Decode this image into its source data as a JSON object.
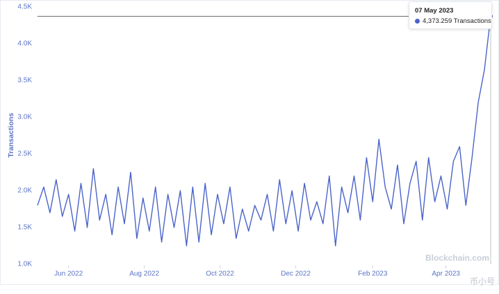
{
  "chart_data": {
    "type": "line",
    "y_label": "Transactions",
    "watermark": "Blockchain.com",
    "watermark2": "币小号",
    "tooltip": {
      "title": "07 May 2023",
      "text": "4,373.259 Transactions"
    },
    "x": [
      "2022-05-07",
      "2022-05-12",
      "2022-05-17",
      "2022-05-22",
      "2022-05-27",
      "2022-06-01",
      "2022-06-06",
      "2022-06-11",
      "2022-06-16",
      "2022-06-21",
      "2022-06-26",
      "2022-07-01",
      "2022-07-06",
      "2022-07-11",
      "2022-07-16",
      "2022-07-21",
      "2022-07-26",
      "2022-07-31",
      "2022-08-05",
      "2022-08-10",
      "2022-08-15",
      "2022-08-20",
      "2022-08-25",
      "2022-08-30",
      "2022-09-04",
      "2022-09-09",
      "2022-09-14",
      "2022-09-19",
      "2022-09-24",
      "2022-09-29",
      "2022-10-04",
      "2022-10-09",
      "2022-10-14",
      "2022-10-19",
      "2022-10-24",
      "2022-10-29",
      "2022-11-03",
      "2022-11-08",
      "2022-11-13",
      "2022-11-18",
      "2022-11-23",
      "2022-11-28",
      "2022-12-03",
      "2022-12-08",
      "2022-12-13",
      "2022-12-18",
      "2022-12-23",
      "2022-12-28",
      "2023-01-02",
      "2023-01-07",
      "2023-01-12",
      "2023-01-17",
      "2023-01-22",
      "2023-01-27",
      "2023-02-01",
      "2023-02-06",
      "2023-02-11",
      "2023-02-16",
      "2023-02-21",
      "2023-02-26",
      "2023-03-03",
      "2023-03-08",
      "2023-03-13",
      "2023-03-18",
      "2023-03-23",
      "2023-03-28",
      "2023-04-02",
      "2023-04-07",
      "2023-04-12",
      "2023-04-17",
      "2023-04-22",
      "2023-04-27",
      "2023-05-02",
      "2023-05-07"
    ],
    "series": [
      {
        "name": "Transactions",
        "color": "#4a63c8",
        "values": [
          1800,
          2050,
          1700,
          2150,
          1650,
          1950,
          1450,
          2100,
          1500,
          2300,
          1600,
          1950,
          1400,
          2050,
          1550,
          2250,
          1350,
          1900,
          1450,
          2050,
          1300,
          1950,
          1500,
          2000,
          1250,
          2050,
          1300,
          2100,
          1400,
          1950,
          1550,
          2050,
          1350,
          1750,
          1450,
          1800,
          1600,
          1950,
          1450,
          2150,
          1550,
          2000,
          1450,
          2100,
          1600,
          1850,
          1550,
          2200,
          1250,
          2050,
          1700,
          2200,
          1600,
          2450,
          1850,
          2700,
          2050,
          1750,
          2350,
          1550,
          2100,
          2400,
          1600,
          2450,
          1850,
          2200,
          1750,
          2400,
          2600,
          1800,
          2450,
          3200,
          3650,
          4373.259
        ]
      }
    ],
    "xlim": [
      "2022-05-07",
      "2023-05-07"
    ],
    "xticks": [
      {
        "value": "2022-06-01",
        "label": "Jun 2022"
      },
      {
        "value": "2022-08-01",
        "label": "Aug 2022"
      },
      {
        "value": "2022-10-01",
        "label": "Oct 2022"
      },
      {
        "value": "2022-12-01",
        "label": "Dec 2022"
      },
      {
        "value": "2023-02-01",
        "label": "Feb 2023"
      },
      {
        "value": "2023-04-01",
        "label": "Apr 2023"
      }
    ],
    "ylim": [
      1000,
      4500
    ],
    "yticks": [
      {
        "value": 1000,
        "label": "1.0K"
      },
      {
        "value": 1500,
        "label": "1.5K"
      },
      {
        "value": 2000,
        "label": "2.0K"
      },
      {
        "value": 2500,
        "label": "2.5K"
      },
      {
        "value": 3000,
        "label": "3.0K"
      },
      {
        "value": 3500,
        "label": "3.5K"
      },
      {
        "value": 4000,
        "label": "4.0K"
      },
      {
        "value": 4500,
        "label": "4.5K"
      }
    ],
    "grid": false
  }
}
